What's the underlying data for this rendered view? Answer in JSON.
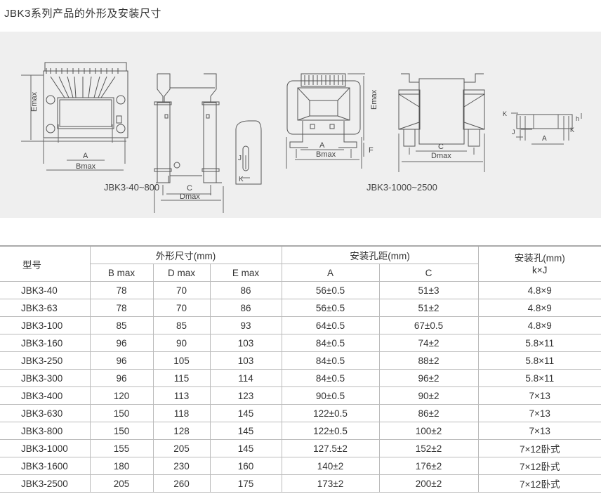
{
  "page_title": "JBK3系列产品的外形及安装尺寸",
  "diagram": {
    "left_caption": "JBK3-40~800",
    "right_caption": "JBK3-1000~2500",
    "labels": {
      "emax": "Emax",
      "a": "A",
      "bmax": "Bmax",
      "c": "C",
      "dmax": "Dmax",
      "j": "J",
      "k": "K",
      "f": "F",
      "h": "h"
    }
  },
  "table": {
    "headers": {
      "model": "型号",
      "outline": "外形尺寸(mm)",
      "spacing": "安装孔距(mm)",
      "hole": "安装孔(mm)",
      "bmax": "B max",
      "dmax": "D max",
      "emax": "E max",
      "a": "A",
      "c": "C",
      "kj": "k×J"
    },
    "rows": [
      [
        "JBK3-40",
        "78",
        "70",
        "86",
        "56±0.5",
        "51±3",
        "4.8×9"
      ],
      [
        "JBK3-63",
        "78",
        "70",
        "86",
        "56±0.5",
        "51±2",
        "4.8×9"
      ],
      [
        "JBK3-100",
        "85",
        "85",
        "93",
        "64±0.5",
        "67±0.5",
        "4.8×9"
      ],
      [
        "JBK3-160",
        "96",
        "90",
        "103",
        "84±0.5",
        "74±2",
        "5.8×11"
      ],
      [
        "JBK3-250",
        "96",
        "105",
        "103",
        "84±0.5",
        "88±2",
        "5.8×11"
      ],
      [
        "JBK3-300",
        "96",
        "115",
        "114",
        "84±0.5",
        "96±2",
        "5.8×11"
      ],
      [
        "JBK3-400",
        "120",
        "113",
        "123",
        "90±0.5",
        "90±2",
        "7×13"
      ],
      [
        "JBK3-630",
        "150",
        "118",
        "145",
        "122±0.5",
        "86±2",
        "7×13"
      ],
      [
        "JBK3-800",
        "150",
        "128",
        "145",
        "122±0.5",
        "100±2",
        "7×13"
      ],
      [
        "JBK3-1000",
        "155",
        "205",
        "145",
        "127.5±2",
        "152±2",
        "7×12卧式"
      ],
      [
        "JBK3-1600",
        "180",
        "230",
        "160",
        "140±2",
        "176±2",
        "7×12卧式"
      ],
      [
        "JBK3-2500",
        "205",
        "260",
        "175",
        "173±2",
        "200±2",
        "7×12卧式"
      ]
    ]
  }
}
